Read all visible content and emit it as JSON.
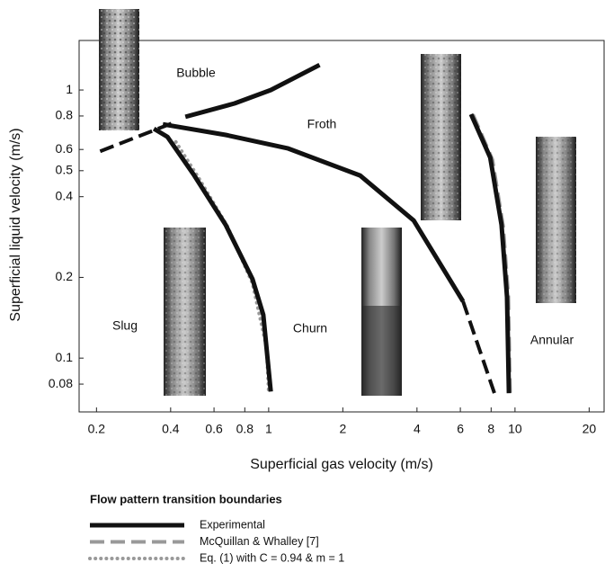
{
  "chart_data": {
    "type": "line",
    "x_label": "Superficial gas velocity (m/s)",
    "y_label": "Superficial liquid velocity (m/s)",
    "xscale": "log",
    "yscale": "log",
    "xlim": [
      0.17,
      23
    ],
    "ylim": [
      0.063,
      1.53
    ],
    "xticks": [
      0.2,
      0.4,
      0.6,
      0.8,
      1,
      2,
      4,
      6,
      8,
      10,
      20
    ],
    "yticks": [
      0.08,
      0.1,
      0.2,
      0.4,
      0.5,
      0.6,
      0.8,
      1
    ],
    "grid": false,
    "regions": [
      "Bubble",
      "Froth",
      "Slug",
      "Churn",
      "Annular"
    ],
    "legend_title": "Flow pattern transition boundaries",
    "series": [
      {
        "name": "Experimental",
        "color": "#111111",
        "style": "solid",
        "x": [
          0.459,
          0.727,
          1.02,
          1.61,
          null,
          0.342,
          0.388,
          0.499,
          0.669,
          0.86,
          0.951,
          1.02,
          null,
          0.372,
          0.669,
          1.2,
          2.35,
          3.88,
          6.15,
          null,
          6.63,
          7.93,
          8.82,
          9.28,
          9.45
        ],
        "y": [
          0.794,
          0.891,
          1.0,
          1.24,
          null,
          0.717,
          0.669,
          0.48,
          0.314,
          0.197,
          0.145,
          0.075,
          null,
          0.745,
          0.68,
          0.605,
          0.48,
          0.326,
          0.163,
          null,
          0.812,
          0.56,
          0.314,
          0.169,
          0.074
        ],
        "extrapolated": {
          "x": [
            0.207,
            0.405,
            null,
            6.15,
            8.25
          ],
          "y": [
            0.591,
            0.751,
            null,
            0.163,
            0.074
          ]
        }
      },
      {
        "name": "McQuillan & Whalley [7]",
        "color": "#999999",
        "style": "dashed",
        "x": [
          6.75,
          8.1,
          8.95,
          9.4,
          9.55
        ],
        "y": [
          0.81,
          0.55,
          0.31,
          0.17,
          0.074
        ]
      },
      {
        "name": "Eq. (1) with C = 0.94 & m = 1",
        "color": "#999999",
        "style": "dotted",
        "x": [
          0.42,
          0.52,
          0.68,
          0.86,
          0.98,
          1.0
        ],
        "y": [
          0.64,
          0.47,
          0.31,
          0.19,
          0.11,
          0.075
        ]
      }
    ]
  }
}
